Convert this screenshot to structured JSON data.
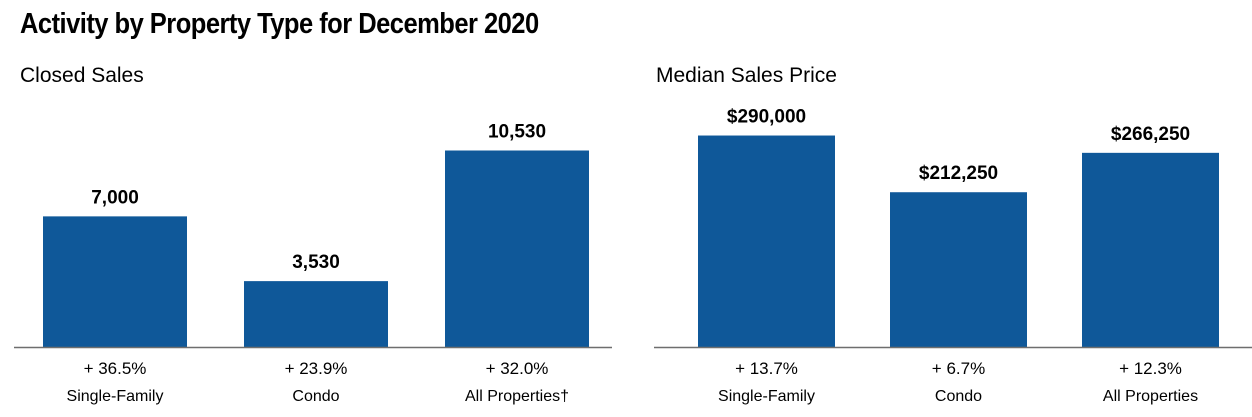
{
  "page": {
    "title": "Activity by Property Type for December 2020"
  },
  "colors": {
    "bar": "#0f5899",
    "axis": "#6e6e6e",
    "text": "#000000"
  },
  "chart_data": [
    {
      "type": "bar",
      "title": "Closed Sales",
      "categories": [
        "Single-Family",
        "Condo",
        "All Properties†"
      ],
      "values": [
        7000,
        3530,
        10530
      ],
      "value_labels": [
        "7,000",
        "3,530",
        "10,530"
      ],
      "changes": [
        "+ 36.5%",
        "+ 23.9%",
        "+ 32.0%"
      ],
      "xlabel": "",
      "ylabel": "",
      "ylim": [
        0,
        12700
      ],
      "grid": false,
      "legend": "none"
    },
    {
      "type": "bar",
      "title": "Median Sales Price",
      "categories": [
        "Single-Family",
        "Condo",
        "All Properties"
      ],
      "values": [
        290000,
        212250,
        266250
      ],
      "value_labels": [
        "$290,000",
        "$212,250",
        "$266,250"
      ],
      "changes": [
        "+ 13.7%",
        "+ 6.7%",
        "+ 12.3%"
      ],
      "xlabel": "",
      "ylabel": "",
      "ylim": [
        0,
        325000
      ],
      "grid": false,
      "legend": "none"
    }
  ]
}
